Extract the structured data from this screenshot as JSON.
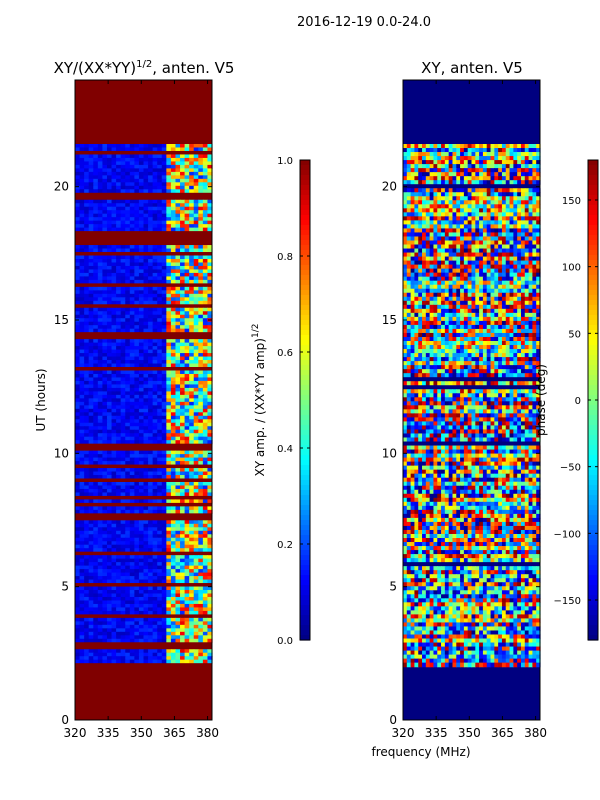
{
  "suptitle": "2016-12-19 0.0-24.0",
  "chart_data": [
    {
      "type": "heatmap",
      "title_main": "XY/(XX*YY)",
      "title_sup": "1/2",
      "title_rest": ", anten. V5",
      "xlabel": "",
      "ylabel": "UT (hours)",
      "xlim": [
        320,
        382
      ],
      "ylim": [
        0,
        24
      ],
      "xticks": [
        "320",
        "335",
        "350",
        "365",
        "380"
      ],
      "yticks": [
        "0",
        "5",
        "10",
        "15",
        "20"
      ],
      "data_time_range_hours": [
        2.0,
        21.6
      ],
      "colorbar": {
        "label_main": "XY amp. / (XX*YY amp)",
        "label_sup": "1/2",
        "range": [
          0.0,
          1.0
        ],
        "ticks": [
          "0.0",
          "0.2",
          "0.4",
          "0.6",
          "0.8",
          "1.0"
        ],
        "colormap": "jet"
      }
    },
    {
      "type": "heatmap",
      "title": "XY, anten. V5",
      "xlabel": "frequency (MHz)",
      "ylabel": "",
      "xlim": [
        320,
        382
      ],
      "ylim": [
        0,
        24
      ],
      "xticks": [
        "320",
        "335",
        "350",
        "365",
        "380"
      ],
      "yticks": [
        "0",
        "5",
        "10",
        "15",
        "20"
      ],
      "data_time_range_hours": [
        2.0,
        21.6
      ],
      "colorbar": {
        "label": "phase (deg)",
        "range": [
          -180,
          180
        ],
        "ticks": [
          "−150",
          "−100",
          "−50",
          "0",
          "50",
          "100",
          "150"
        ],
        "colormap": "jet"
      }
    }
  ],
  "colors": {
    "jet_darkred": "#800000",
    "jet_darkblue": "#000080",
    "axis": "#000000"
  }
}
